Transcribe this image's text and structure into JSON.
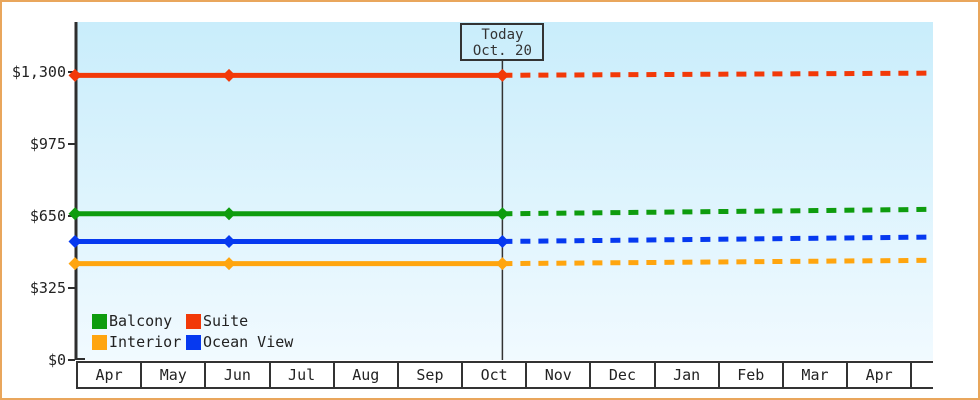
{
  "window": {
    "background": "#ffffff",
    "frame_border_color": "#e9a65c"
  },
  "chart_data": {
    "type": "line",
    "title": "",
    "grid": false,
    "axis_color": "#2e2e2e",
    "today_line_color": "#333333",
    "plot_bg_top": "#c9edfb",
    "plot_bg_bottom": "#f1faff",
    "today_marker": {
      "line1": "Today",
      "line2": "Oct. 20",
      "u": 6.66
    },
    "x_axis": {
      "categories": [
        "Apr",
        "May",
        "Jun",
        "Jul",
        "Aug",
        "Sep",
        "Oct",
        "Nov",
        "Dec",
        "Jan",
        "Feb",
        "Mar",
        "Apr"
      ],
      "extent_u": 13.37
    },
    "y_axis": {
      "min": 0,
      "max": 1300,
      "ticks": [
        {
          "label": "$1,300",
          "value": 1300
        },
        {
          "label": "$975",
          "value": 975
        },
        {
          "label": "$650",
          "value": 650
        },
        {
          "label": "$325",
          "value": 325
        },
        {
          "label": "$0",
          "value": 0
        }
      ]
    },
    "series": [
      {
        "name": "Balcony",
        "color": "#0e9c0e",
        "history": [
          {
            "u": 0,
            "value": 660
          },
          {
            "u": 2.4,
            "value": 660
          },
          {
            "u": 6.66,
            "value": 660
          }
        ],
        "projection": [
          {
            "u": 6.66,
            "value": 660
          },
          {
            "u": 13.37,
            "value": 680
          }
        ]
      },
      {
        "name": "Suite",
        "color": "#f23908",
        "history": [
          {
            "u": 0,
            "value": 1285
          },
          {
            "u": 2.4,
            "value": 1285
          },
          {
            "u": 6.66,
            "value": 1285
          }
        ],
        "projection": [
          {
            "u": 6.66,
            "value": 1285
          },
          {
            "u": 13.37,
            "value": 1295
          }
        ]
      },
      {
        "name": "Interior",
        "color": "#ffa50f",
        "history": [
          {
            "u": 0,
            "value": 435
          },
          {
            "u": 2.4,
            "value": 435
          },
          {
            "u": 6.66,
            "value": 435
          }
        ],
        "projection": [
          {
            "u": 6.66,
            "value": 435
          },
          {
            "u": 13.37,
            "value": 450
          }
        ]
      },
      {
        "name": "Ocean View",
        "color": "#0639f0",
        "history": [
          {
            "u": 0,
            "value": 535
          },
          {
            "u": 2.4,
            "value": 535
          },
          {
            "u": 6.66,
            "value": 535
          }
        ],
        "projection": [
          {
            "u": 6.66,
            "value": 535
          },
          {
            "u": 13.37,
            "value": 555
          }
        ]
      }
    ]
  },
  "legend": {
    "items": [
      {
        "label": "Balcony",
        "color": "#0e9c0e"
      },
      {
        "label": "Suite",
        "color": "#f23908"
      },
      {
        "label": "Interior",
        "color": "#ffa50f"
      },
      {
        "label": "Ocean View",
        "color": "#0639f0"
      }
    ]
  }
}
